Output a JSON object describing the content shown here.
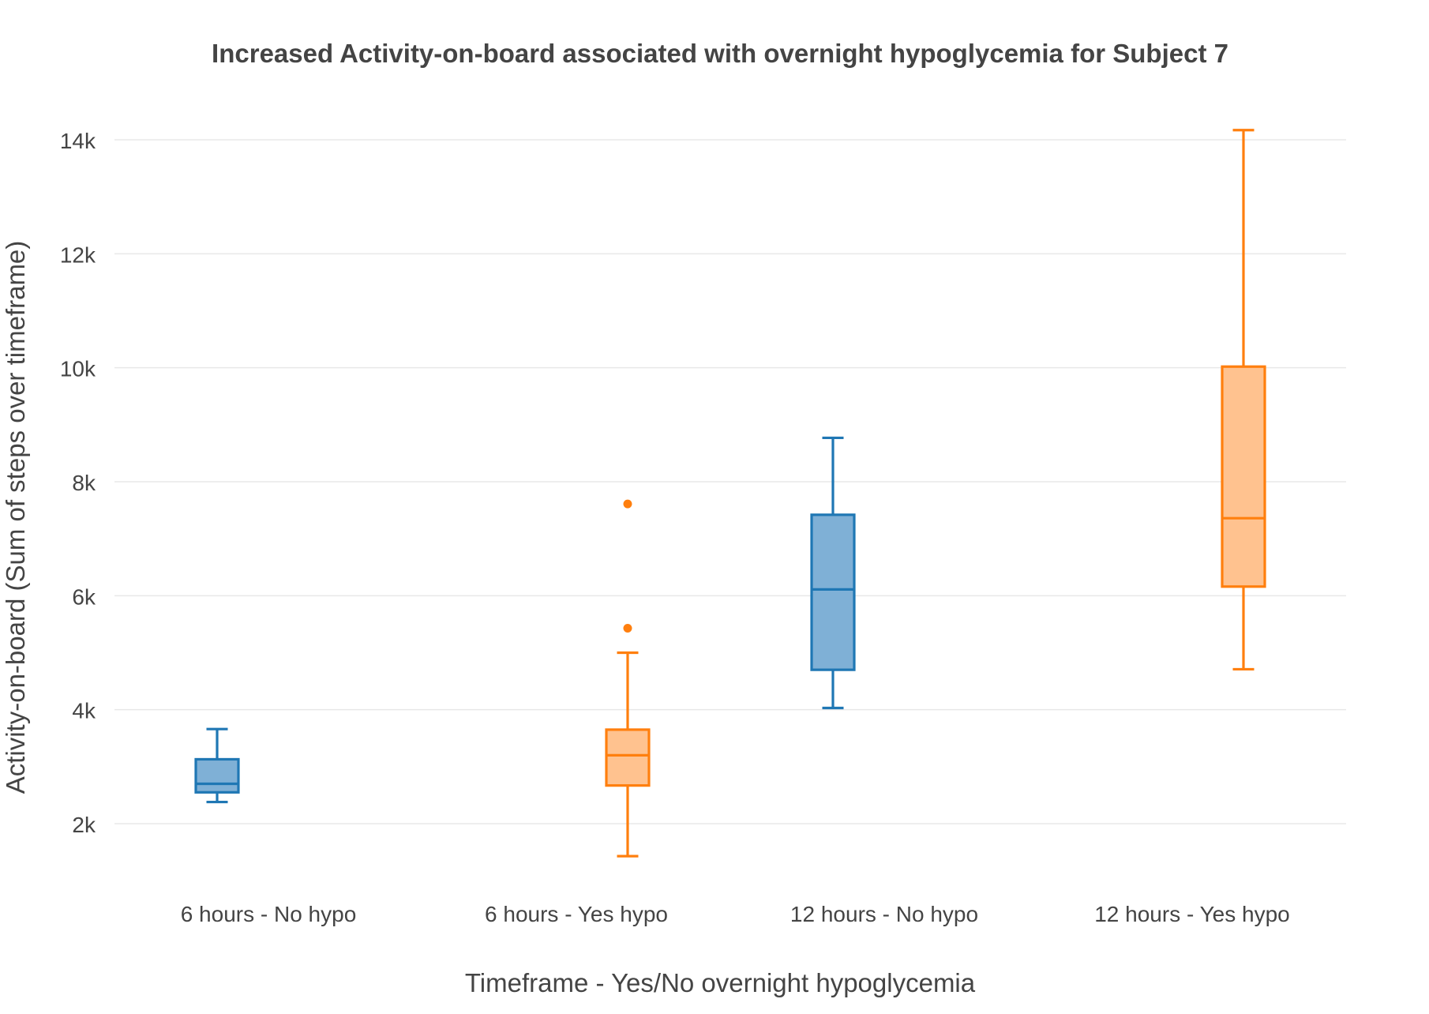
{
  "chart_data": {
    "type": "box",
    "title": "Increased Activity-on-board associated with overnight hypoglycemia for Subject 7",
    "xlabel": "Timeframe - Yes/No overnight hypoglycemia",
    "ylabel": "Activity-on-board (Sum of steps over timeframe)",
    "categories": [
      "6 hours - No hypo",
      "6 hours - Yes hypo",
      "12 hours - No hypo",
      "12 hours - Yes hypo"
    ],
    "yticks": [
      2000,
      4000,
      6000,
      8000,
      10000,
      12000,
      14000
    ],
    "ytick_labels": [
      "2k",
      "4k",
      "6k",
      "8k",
      "10k",
      "12k",
      "14k"
    ],
    "ylim": [
      800,
      14500
    ],
    "grid": true,
    "legend": "none",
    "boxes": [
      {
        "category": "6 hours - No hypo",
        "slot": "left",
        "color": "#1f77b4",
        "fill": "#7fb0d6",
        "min": 2380,
        "q1": 2550,
        "median": 2700,
        "q3": 3130,
        "max": 3660,
        "outliers": []
      },
      {
        "category": "6 hours - Yes hypo",
        "slot": "right",
        "color": "#ff7f0e",
        "fill": "#ffc28f",
        "min": 1430,
        "q1": 2670,
        "median": 3200,
        "q3": 3650,
        "max": 5000,
        "outliers": [
          5430,
          7610
        ]
      },
      {
        "category": "12 hours - No hypo",
        "slot": "left",
        "color": "#1f77b4",
        "fill": "#7fb0d6",
        "min": 4030,
        "q1": 4700,
        "median": 6110,
        "q3": 7420,
        "max": 8770,
        "outliers": []
      },
      {
        "category": "12 hours - Yes hypo",
        "slot": "right",
        "color": "#ff7f0e",
        "fill": "#ffc28f",
        "min": 4710,
        "q1": 6160,
        "median": 7360,
        "q3": 10020,
        "max": 14170,
        "outliers": []
      }
    ]
  }
}
